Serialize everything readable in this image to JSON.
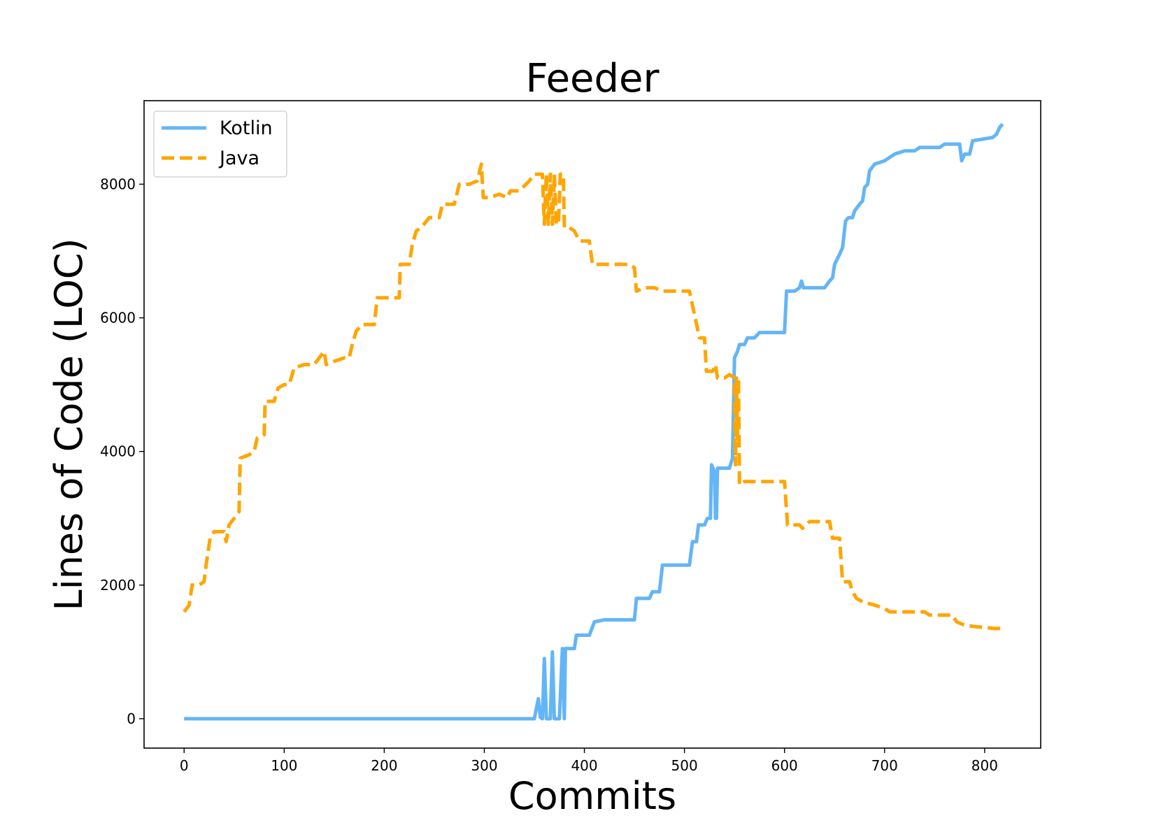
{
  "chart_data": {
    "type": "line",
    "title": "Feeder",
    "xlabel": "Commits",
    "ylabel": "Lines of Code (LOC)",
    "xlim": [
      -40,
      856
    ],
    "ylim": [
      -440,
      9250
    ],
    "xticks": [
      0,
      100,
      200,
      300,
      400,
      500,
      600,
      700,
      800
    ],
    "yticks": [
      0,
      2000,
      4000,
      6000,
      8000
    ],
    "legend_position": "upper-left",
    "grid": false,
    "series": [
      {
        "name": "Kotlin",
        "color": "#64b5f6",
        "style": "solid",
        "points": [
          [
            0,
            0
          ],
          [
            350,
            0
          ],
          [
            354,
            300
          ],
          [
            356,
            20
          ],
          [
            358,
            0
          ],
          [
            360,
            900
          ],
          [
            362,
            0
          ],
          [
            366,
            0
          ],
          [
            368,
            1000
          ],
          [
            370,
            0
          ],
          [
            375,
            0
          ],
          [
            378,
            1050
          ],
          [
            380,
            0
          ],
          [
            381,
            1050
          ],
          [
            390,
            1050
          ],
          [
            392,
            1250
          ],
          [
            405,
            1250
          ],
          [
            410,
            1450
          ],
          [
            420,
            1480
          ],
          [
            450,
            1480
          ],
          [
            452,
            1800
          ],
          [
            465,
            1800
          ],
          [
            468,
            1900
          ],
          [
            475,
            1900
          ],
          [
            478,
            2300
          ],
          [
            500,
            2300
          ],
          [
            505,
            2300
          ],
          [
            508,
            2650
          ],
          [
            512,
            2650
          ],
          [
            514,
            2900
          ],
          [
            520,
            2900
          ],
          [
            523,
            3000
          ],
          [
            526,
            3000
          ],
          [
            527,
            3800
          ],
          [
            530,
            3700
          ],
          [
            531,
            3000
          ],
          [
            532,
            3000
          ],
          [
            533,
            3750
          ],
          [
            545,
            3750
          ],
          [
            548,
            3900
          ],
          [
            550,
            5400
          ],
          [
            553,
            5500
          ],
          [
            555,
            5600
          ],
          [
            560,
            5600
          ],
          [
            563,
            5700
          ],
          [
            570,
            5700
          ],
          [
            575,
            5780
          ],
          [
            600,
            5780
          ],
          [
            602,
            6400
          ],
          [
            610,
            6400
          ],
          [
            615,
            6450
          ],
          [
            617,
            6550
          ],
          [
            619,
            6450
          ],
          [
            640,
            6450
          ],
          [
            645,
            6550
          ],
          [
            648,
            6600
          ],
          [
            650,
            6800
          ],
          [
            655,
            6950
          ],
          [
            658,
            7050
          ],
          [
            661,
            7450
          ],
          [
            664,
            7500
          ],
          [
            668,
            7500
          ],
          [
            670,
            7600
          ],
          [
            675,
            7700
          ],
          [
            678,
            7750
          ],
          [
            680,
            7950
          ],
          [
            683,
            8000
          ],
          [
            685,
            8200
          ],
          [
            690,
            8300
          ],
          [
            700,
            8350
          ],
          [
            710,
            8450
          ],
          [
            720,
            8500
          ],
          [
            730,
            8500
          ],
          [
            735,
            8550
          ],
          [
            755,
            8550
          ],
          [
            760,
            8600
          ],
          [
            775,
            8600
          ],
          [
            777,
            8350
          ],
          [
            780,
            8450
          ],
          [
            785,
            8450
          ],
          [
            788,
            8650
          ],
          [
            800,
            8680
          ],
          [
            808,
            8700
          ],
          [
            812,
            8750
          ],
          [
            815,
            8850
          ],
          [
            818,
            8900
          ]
        ]
      },
      {
        "name": "Java",
        "color": "#ffa500",
        "style": "dashed",
        "points": [
          [
            0,
            1600
          ],
          [
            5,
            1700
          ],
          [
            8,
            2000
          ],
          [
            15,
            2000
          ],
          [
            20,
            2050
          ],
          [
            22,
            2300
          ],
          [
            26,
            2700
          ],
          [
            30,
            2800
          ],
          [
            40,
            2800
          ],
          [
            42,
            2650
          ],
          [
            45,
            2900
          ],
          [
            50,
            3000
          ],
          [
            55,
            3100
          ],
          [
            56,
            3900
          ],
          [
            65,
            3950
          ],
          [
            70,
            4000
          ],
          [
            73,
            4200
          ],
          [
            80,
            4250
          ],
          [
            81,
            4750
          ],
          [
            90,
            4750
          ],
          [
            94,
            4950
          ],
          [
            100,
            5000
          ],
          [
            105,
            5000
          ],
          [
            110,
            5250
          ],
          [
            120,
            5300
          ],
          [
            130,
            5300
          ],
          [
            140,
            5500
          ],
          [
            142,
            5300
          ],
          [
            150,
            5350
          ],
          [
            160,
            5400
          ],
          [
            165,
            5400
          ],
          [
            168,
            5600
          ],
          [
            172,
            5800
          ],
          [
            178,
            5900
          ],
          [
            190,
            5900
          ],
          [
            193,
            6300
          ],
          [
            205,
            6300
          ],
          [
            215,
            6300
          ],
          [
            216,
            6800
          ],
          [
            225,
            6800
          ],
          [
            228,
            7100
          ],
          [
            232,
            7300
          ],
          [
            237,
            7350
          ],
          [
            245,
            7500
          ],
          [
            255,
            7500
          ],
          [
            258,
            7700
          ],
          [
            270,
            7700
          ],
          [
            275,
            8000
          ],
          [
            285,
            8000
          ],
          [
            293,
            8050
          ],
          [
            297,
            8300
          ],
          [
            299,
            7800
          ],
          [
            305,
            7800
          ],
          [
            315,
            7850
          ],
          [
            323,
            7800
          ],
          [
            326,
            7900
          ],
          [
            335,
            7900
          ],
          [
            345,
            8050
          ],
          [
            350,
            8150
          ],
          [
            358,
            8150
          ],
          [
            360,
            7400
          ],
          [
            362,
            8150
          ],
          [
            364,
            7400
          ],
          [
            366,
            8150
          ],
          [
            368,
            7400
          ],
          [
            370,
            8150
          ],
          [
            372,
            7400
          ],
          [
            374,
            7400
          ],
          [
            376,
            8150
          ],
          [
            379,
            8150
          ],
          [
            380,
            7350
          ],
          [
            385,
            7350
          ],
          [
            390,
            7300
          ],
          [
            395,
            7150
          ],
          [
            405,
            7150
          ],
          [
            408,
            6800
          ],
          [
            425,
            6800
          ],
          [
            445,
            6800
          ],
          [
            450,
            6750
          ],
          [
            452,
            6400
          ],
          [
            460,
            6450
          ],
          [
            470,
            6450
          ],
          [
            478,
            6400
          ],
          [
            500,
            6400
          ],
          [
            505,
            6400
          ],
          [
            510,
            6050
          ],
          [
            515,
            5700
          ],
          [
            520,
            5700
          ],
          [
            522,
            5200
          ],
          [
            528,
            5200
          ],
          [
            531,
            5300
          ],
          [
            533,
            5100
          ],
          [
            540,
            5100
          ],
          [
            545,
            5150
          ],
          [
            550,
            5100
          ],
          [
            551,
            3800
          ],
          [
            552,
            5100
          ],
          [
            553,
            4200
          ],
          [
            554,
            5100
          ],
          [
            555,
            3500
          ],
          [
            560,
            3550
          ],
          [
            570,
            3550
          ],
          [
            580,
            3550
          ],
          [
            600,
            3550
          ],
          [
            603,
            2900
          ],
          [
            615,
            2900
          ],
          [
            618,
            2850
          ],
          [
            625,
            2950
          ],
          [
            640,
            2950
          ],
          [
            645,
            2950
          ],
          [
            648,
            2700
          ],
          [
            655,
            2700
          ],
          [
            658,
            2050
          ],
          [
            665,
            2050
          ],
          [
            668,
            1900
          ],
          [
            672,
            1800
          ],
          [
            678,
            1750
          ],
          [
            690,
            1700
          ],
          [
            700,
            1650
          ],
          [
            705,
            1600
          ],
          [
            720,
            1600
          ],
          [
            740,
            1600
          ],
          [
            745,
            1550
          ],
          [
            768,
            1550
          ],
          [
            772,
            1450
          ],
          [
            780,
            1400
          ],
          [
            790,
            1380
          ],
          [
            810,
            1350
          ],
          [
            816,
            1350
          ]
        ]
      }
    ]
  }
}
